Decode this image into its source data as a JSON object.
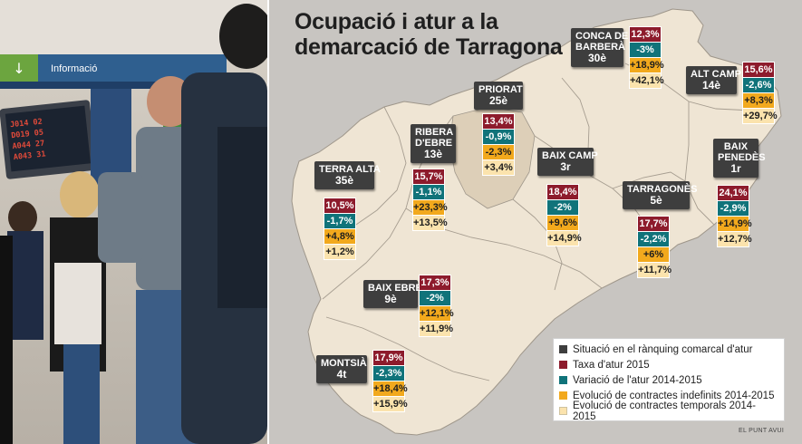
{
  "title": {
    "line1": "Ocupació i atur a la",
    "line2": "demarcació de Tarragona"
  },
  "photo": {
    "sign_text": "Informació",
    "board_rows": [
      "J014  02",
      "D019  05",
      "A044  27",
      "A043  31"
    ]
  },
  "comarques": [
    {
      "id": "conca-de-barbera",
      "name1": "CONCA DE",
      "name2": "BARBERÀ",
      "rank": "30è",
      "taxa": "12,3%",
      "variacio": "-3%",
      "indefinits": "+18,9%",
      "temporals": "+42,1%"
    },
    {
      "id": "alt-camp",
      "name1": "ALT CAMP",
      "name2": "",
      "rank": "14è",
      "taxa": "15,6%",
      "variacio": "-2,6%",
      "indefinits": "+8,3%",
      "temporals": "+29,7%"
    },
    {
      "id": "priorat",
      "name1": "PRIORAT",
      "name2": "",
      "rank": "25è",
      "taxa": "13,4%",
      "variacio": "-0,9%",
      "indefinits": "-2,3%",
      "temporals": "+3,4%"
    },
    {
      "id": "ribera-debre",
      "name1": "RIBERA",
      "name2": "D'EBRE",
      "rank": "13è",
      "taxa": "15,7%",
      "variacio": "-1,1%",
      "indefinits": "+23,3%",
      "temporals": "+13,5%"
    },
    {
      "id": "baix-penedes",
      "name1": "BAIX",
      "name2": "PENEDÈS",
      "rank": "1r",
      "taxa": "24,1%",
      "variacio": "-2,9%",
      "indefinits": "+14,9%",
      "temporals": "+12,7%"
    },
    {
      "id": "terra-alta",
      "name1": "TERRA ALTA",
      "name2": "",
      "rank": "35è",
      "taxa": "10,5%",
      "variacio": "-1,7%",
      "indefinits": "+4,8%",
      "temporals": "+1,2%"
    },
    {
      "id": "baix-camp",
      "name1": "BAIX CAMP",
      "name2": "",
      "rank": "3r",
      "taxa": "18,4%",
      "variacio": "-2%",
      "indefinits": "+9,6%",
      "temporals": "+14,9%"
    },
    {
      "id": "tarragones",
      "name1": "TARRAGONÈS",
      "name2": "",
      "rank": "5è",
      "taxa": "17,7%",
      "variacio": "-2,2%",
      "indefinits": "+6%",
      "temporals": "+11,7%"
    },
    {
      "id": "baix-ebre",
      "name1": "BAIX EBRE",
      "name2": "",
      "rank": "9è",
      "taxa": "17,3%",
      "variacio": "-2%",
      "indefinits": "+12,1%",
      "temporals": "+11,9%"
    },
    {
      "id": "montsia",
      "name1": "MONTSIÀ",
      "name2": "",
      "rank": "4t",
      "taxa": "17,9%",
      "variacio": "-2,3%",
      "indefinits": "+18,4%",
      "temporals": "+15,9%"
    }
  ],
  "legend": [
    {
      "label": "Situació en el rànquing comarcal d'atur",
      "color": "#3e3e3e"
    },
    {
      "label": "Taxa d'atur 2015",
      "color": "#8d1b2c"
    },
    {
      "label": "Variació de l'atur 2014-2015",
      "color": "#10737a"
    },
    {
      "label": "Evolució de contractes indefinits 2014-2015",
      "color": "#f2a91d"
    },
    {
      "label": "Evolució de contractes temporals 2014-2015",
      "color": "#fbe3ad"
    }
  ],
  "credit": "EL PUNT AVUI",
  "colors": {
    "map_fill": "#efe5d4",
    "map_highlight": "#ddcfb8",
    "panel": "#c8c5c1"
  }
}
